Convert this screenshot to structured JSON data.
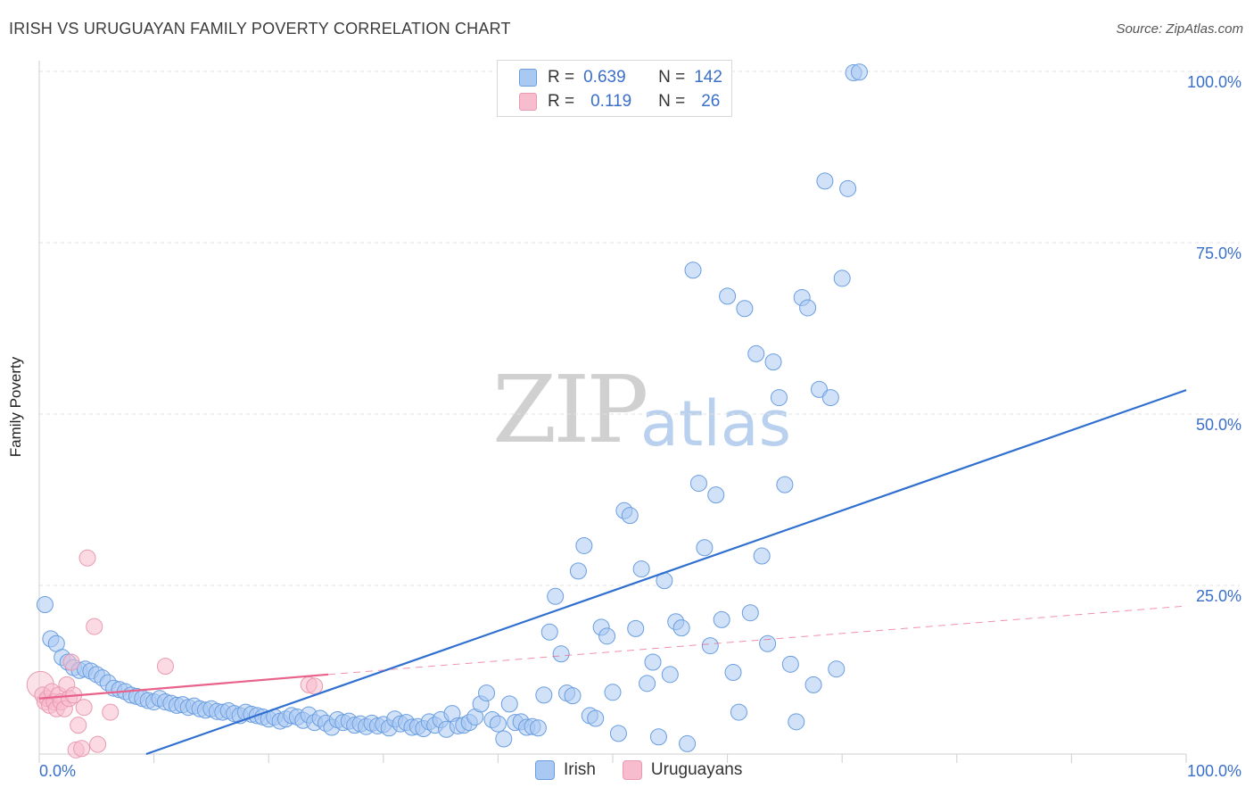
{
  "header": {
    "title": "IRISH VS URUGUAYAN FAMILY POVERTY CORRELATION CHART",
    "source": "Source: ZipAtlas.com"
  },
  "watermark": {
    "zip": "ZIP",
    "atlas": "atlas"
  },
  "legend_top": {
    "rows": [
      {
        "r_label": "R =",
        "r_value": "0.639",
        "n_label": "N =",
        "n_value": "142",
        "color": "#a9c8f2"
      },
      {
        "r_label": "R =",
        "r_value": "0.119",
        "n_label": "N =",
        "n_value": "26",
        "color": "#f7bccd"
      }
    ]
  },
  "legend_bottom": {
    "items": [
      {
        "label": "Irish",
        "color": "#a9c8f2"
      },
      {
        "label": "Uruguayans",
        "color": "#f7bccd"
      }
    ]
  },
  "chart_data": {
    "type": "scatter",
    "title": "IRISH VS URUGUAYAN FAMILY POVERTY CORRELATION CHART",
    "xlabel": "",
    "ylabel": "Family Poverty",
    "xlim": [
      0,
      100
    ],
    "ylim": [
      0,
      100
    ],
    "x_tick_labels": [
      "0.0%",
      "100.0%"
    ],
    "y_tick_labels": [
      "25.0%",
      "50.0%",
      "75.0%",
      "100.0%"
    ],
    "y_ticks": [
      25,
      50,
      75,
      100
    ],
    "grid": true,
    "legend": "top-center",
    "series": [
      {
        "name": "Irish",
        "color": "#6a9ee0",
        "fill": "#a9c8f2",
        "trendline": {
          "x": [
            0,
            100
          ],
          "y": [
            -5.5,
            53.5
          ],
          "style": "solid",
          "color": "#2f6fd0"
        },
        "points": [
          [
            0.5,
            22.2
          ],
          [
            1.0,
            17.2
          ],
          [
            1.5,
            16.5
          ],
          [
            2.0,
            14.5
          ],
          [
            2.5,
            13.8
          ],
          [
            3.0,
            13.0
          ],
          [
            3.5,
            12.6
          ],
          [
            4.0,
            12.8
          ],
          [
            4.5,
            12.5
          ],
          [
            5.0,
            12.0
          ],
          [
            5.5,
            11.5
          ],
          [
            6.0,
            10.8
          ],
          [
            6.5,
            10.0
          ],
          [
            7.0,
            9.8
          ],
          [
            7.5,
            9.5
          ],
          [
            8.0,
            9.0
          ],
          [
            8.5,
            8.8
          ],
          [
            9.0,
            8.5
          ],
          [
            9.5,
            8.2
          ],
          [
            10.0,
            8.0
          ],
          [
            10.5,
            8.5
          ],
          [
            11.0,
            8.0
          ],
          [
            11.5,
            7.8
          ],
          [
            12.0,
            7.5
          ],
          [
            12.5,
            7.6
          ],
          [
            13.0,
            7.2
          ],
          [
            13.5,
            7.4
          ],
          [
            14.0,
            7.0
          ],
          [
            14.5,
            6.8
          ],
          [
            15.0,
            7.0
          ],
          [
            15.5,
            6.6
          ],
          [
            16.0,
            6.5
          ],
          [
            16.5,
            6.7
          ],
          [
            17.0,
            6.3
          ],
          [
            17.5,
            6.0
          ],
          [
            18.0,
            6.5
          ],
          [
            18.5,
            6.2
          ],
          [
            19.0,
            6.0
          ],
          [
            19.5,
            5.8
          ],
          [
            20.0,
            5.5
          ],
          [
            20.5,
            5.8
          ],
          [
            21.0,
            5.2
          ],
          [
            21.5,
            5.5
          ],
          [
            22.0,
            6.0
          ],
          [
            22.5,
            5.8
          ],
          [
            23.0,
            5.3
          ],
          [
            23.5,
            6.1
          ],
          [
            24.0,
            5.0
          ],
          [
            24.5,
            5.6
          ],
          [
            25.0,
            4.9
          ],
          [
            25.5,
            4.3
          ],
          [
            26.0,
            5.4
          ],
          [
            26.5,
            5.0
          ],
          [
            27.0,
            5.2
          ],
          [
            27.5,
            4.6
          ],
          [
            28.0,
            4.8
          ],
          [
            28.5,
            4.4
          ],
          [
            29.0,
            4.9
          ],
          [
            29.5,
            4.5
          ],
          [
            30.0,
            4.7
          ],
          [
            30.5,
            4.2
          ],
          [
            31.0,
            5.5
          ],
          [
            31.5,
            4.8
          ],
          [
            32.0,
            5.0
          ],
          [
            32.5,
            4.3
          ],
          [
            33.0,
            4.4
          ],
          [
            33.5,
            4.1
          ],
          [
            34.0,
            5.1
          ],
          [
            34.5,
            4.6
          ],
          [
            35.0,
            5.4
          ],
          [
            35.5,
            4.0
          ],
          [
            36.0,
            6.3
          ],
          [
            36.5,
            4.5
          ],
          [
            37.0,
            4.6
          ],
          [
            37.5,
            5.0
          ],
          [
            38.0,
            5.8
          ],
          [
            38.5,
            7.7
          ],
          [
            39.0,
            9.3
          ],
          [
            39.5,
            5.4
          ],
          [
            40.0,
            4.8
          ],
          [
            40.5,
            2.6
          ],
          [
            41.0,
            7.7
          ],
          [
            41.5,
            5.0
          ],
          [
            42.0,
            5.1
          ],
          [
            42.5,
            4.3
          ],
          [
            43.0,
            4.4
          ],
          [
            43.5,
            4.2
          ],
          [
            44.0,
            9.0
          ],
          [
            44.5,
            18.2
          ],
          [
            45.0,
            23.4
          ],
          [
            45.5,
            15.0
          ],
          [
            46.0,
            9.3
          ],
          [
            46.5,
            8.9
          ],
          [
            47.0,
            27.1
          ],
          [
            47.5,
            30.8
          ],
          [
            48.0,
            6.0
          ],
          [
            48.5,
            5.6
          ],
          [
            49.0,
            18.9
          ],
          [
            49.5,
            17.6
          ],
          [
            50.0,
            9.4
          ],
          [
            50.5,
            3.4
          ],
          [
            51.0,
            35.9
          ],
          [
            51.5,
            35.2
          ],
          [
            52.0,
            18.7
          ],
          [
            52.5,
            27.4
          ],
          [
            53.0,
            10.7
          ],
          [
            53.5,
            13.8
          ],
          [
            54.0,
            2.9
          ],
          [
            54.5,
            25.7
          ],
          [
            55.0,
            12.0
          ],
          [
            55.5,
            19.7
          ],
          [
            56.0,
            18.8
          ],
          [
            56.5,
            1.9
          ],
          [
            57.0,
            71.0
          ],
          [
            57.5,
            39.9
          ],
          [
            58.0,
            30.5
          ],
          [
            58.5,
            16.2
          ],
          [
            59.0,
            38.2
          ],
          [
            59.5,
            20.0
          ],
          [
            60.0,
            67.2
          ],
          [
            60.5,
            12.3
          ],
          [
            61.0,
            6.5
          ],
          [
            61.5,
            65.4
          ],
          [
            62.0,
            21.0
          ],
          [
            62.5,
            58.8
          ],
          [
            63.0,
            29.3
          ],
          [
            63.5,
            16.5
          ],
          [
            64.0,
            57.6
          ],
          [
            64.5,
            52.4
          ],
          [
            65.0,
            39.7
          ],
          [
            65.5,
            13.5
          ],
          [
            66.0,
            5.1
          ],
          [
            66.5,
            67.0
          ],
          [
            67.0,
            65.5
          ],
          [
            67.5,
            10.5
          ],
          [
            68.0,
            53.6
          ],
          [
            68.5,
            84.0
          ],
          [
            69.0,
            52.4
          ],
          [
            69.5,
            12.8
          ],
          [
            70.0,
            69.8
          ],
          [
            70.5,
            82.9
          ],
          [
            71.0,
            99.8
          ],
          [
            71.5,
            99.9
          ]
        ]
      },
      {
        "name": "Uruguayans",
        "color": "#e89ab0",
        "fill": "#f7bccd",
        "trendline": {
          "x": [
            0,
            25.2
          ],
          "y": [
            8.5,
            12.0
          ],
          "x_ext": [
            25.2,
            100
          ],
          "y_ext": [
            12.0,
            22.0
          ],
          "style": "solid+dashed",
          "color": "#e8628c"
        },
        "points": [
          [
            0.1,
            10.5
          ],
          [
            0.3,
            9.0
          ],
          [
            0.5,
            8.0
          ],
          [
            0.7,
            8.5
          ],
          [
            0.9,
            7.5
          ],
          [
            1.1,
            9.5
          ],
          [
            1.3,
            8.0
          ],
          [
            1.5,
            7.0
          ],
          [
            1.7,
            9.0
          ],
          [
            1.9,
            8.0
          ],
          [
            2.2,
            7.0
          ],
          [
            2.4,
            10.5
          ],
          [
            2.6,
            8.5
          ],
          [
            2.8,
            13.8
          ],
          [
            3.0,
            9.0
          ],
          [
            3.4,
            4.6
          ],
          [
            3.2,
            1.0
          ],
          [
            3.7,
            1.2
          ],
          [
            3.9,
            7.2
          ],
          [
            4.2,
            29.0
          ],
          [
            5.1,
            1.8
          ],
          [
            6.2,
            6.5
          ],
          [
            4.8,
            19.0
          ],
          [
            11.0,
            13.2
          ],
          [
            23.5,
            10.5
          ],
          [
            24.0,
            10.3
          ]
        ]
      }
    ]
  }
}
